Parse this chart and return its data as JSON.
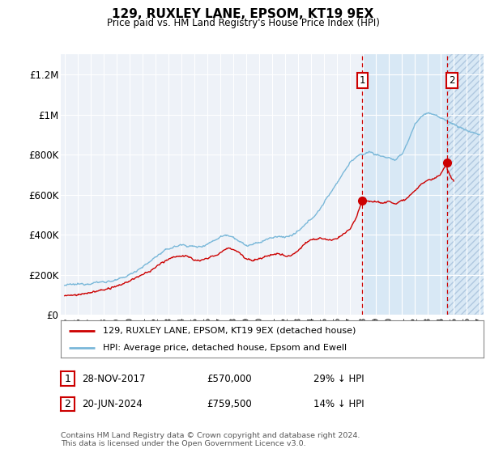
{
  "title": "129, RUXLEY LANE, EPSOM, KT19 9EX",
  "subtitle": "Price paid vs. HM Land Registry's House Price Index (HPI)",
  "xlim_start": 1994.7,
  "xlim_end": 2027.3,
  "ylim": [
    0,
    1300000
  ],
  "yticks": [
    0,
    200000,
    400000,
    600000,
    800000,
    1000000,
    1200000
  ],
  "ytick_labels": [
    "£0",
    "£200K",
    "£400K",
    "£600K",
    "£800K",
    "£1M",
    "£1.2M"
  ],
  "sale1_x": 2017.91,
  "sale1_y": 570000,
  "sale1_label": "1",
  "sale2_x": 2024.47,
  "sale2_y": 759500,
  "sale2_label": "2",
  "hpi_color": "#7ab8d9",
  "price_color": "#cc0000",
  "annotation_box_color": "#cc0000",
  "shaded_region1_start": 2017.91,
  "shaded_region2_start": 2024.47,
  "legend_line1": "129, RUXLEY LANE, EPSOM, KT19 9EX (detached house)",
  "legend_line2": "HPI: Average price, detached house, Epsom and Ewell",
  "table_row1": [
    "1",
    "28-NOV-2017",
    "£570,000",
    "29% ↓ HPI"
  ],
  "table_row2": [
    "2",
    "20-JUN-2024",
    "£759,500",
    "14% ↓ HPI"
  ],
  "footnote": "Contains HM Land Registry data © Crown copyright and database right 2024.\nThis data is licensed under the Open Government Licence v3.0.",
  "background_color": "#ffffff",
  "plot_bg_color": "#eef2f8",
  "hpi_keypoints_x": [
    1995.0,
    1995.5,
    1996.0,
    1996.5,
    1997.0,
    1997.5,
    1998.0,
    1998.5,
    1999.0,
    1999.5,
    2000.0,
    2000.5,
    2001.0,
    2001.5,
    2002.0,
    2002.5,
    2003.0,
    2003.5,
    2004.0,
    2004.5,
    2005.0,
    2005.5,
    2006.0,
    2006.5,
    2007.0,
    2007.5,
    2008.0,
    2008.5,
    2009.0,
    2009.5,
    2010.0,
    2010.5,
    2011.0,
    2011.5,
    2012.0,
    2012.5,
    2013.0,
    2013.5,
    2014.0,
    2014.5,
    2015.0,
    2015.5,
    2016.0,
    2016.5,
    2017.0,
    2017.5,
    2018.0,
    2018.5,
    2019.0,
    2019.5,
    2020.0,
    2020.5,
    2021.0,
    2021.5,
    2022.0,
    2022.5,
    2023.0,
    2023.5,
    2024.0,
    2024.5,
    2025.0,
    2025.5,
    2026.0,
    2026.5,
    2027.0
  ],
  "hpi_keypoints_y": [
    148000,
    150000,
    152000,
    155000,
    158000,
    162000,
    165000,
    168000,
    172000,
    185000,
    200000,
    220000,
    240000,
    260000,
    290000,
    310000,
    330000,
    340000,
    350000,
    345000,
    340000,
    340000,
    355000,
    370000,
    390000,
    400000,
    390000,
    365000,
    345000,
    350000,
    360000,
    375000,
    385000,
    390000,
    390000,
    395000,
    415000,
    445000,
    480000,
    510000,
    560000,
    610000,
    660000,
    710000,
    760000,
    790000,
    800000,
    815000,
    800000,
    790000,
    785000,
    770000,
    800000,
    870000,
    950000,
    990000,
    1010000,
    1000000,
    980000,
    970000,
    950000,
    935000,
    920000,
    910000,
    900000
  ],
  "price_keypoints_x": [
    1995.0,
    1995.5,
    1996.0,
    1996.5,
    1997.0,
    1997.5,
    1998.0,
    1998.5,
    1999.0,
    1999.5,
    2000.0,
    2000.5,
    2001.0,
    2001.5,
    2002.0,
    2002.5,
    2003.0,
    2003.5,
    2004.0,
    2004.5,
    2005.0,
    2005.5,
    2006.0,
    2006.5,
    2007.0,
    2007.5,
    2008.0,
    2008.5,
    2009.0,
    2009.5,
    2010.0,
    2010.5,
    2011.0,
    2011.5,
    2012.0,
    2012.5,
    2013.0,
    2013.5,
    2014.0,
    2014.5,
    2015.0,
    2015.5,
    2016.0,
    2016.5,
    2017.0,
    2017.5,
    2017.91,
    2018.0,
    2018.5,
    2019.0,
    2019.5,
    2020.0,
    2020.5,
    2021.0,
    2021.5,
    2022.0,
    2022.5,
    2023.0,
    2023.5,
    2024.0,
    2024.47,
    2024.5,
    2025.0
  ],
  "price_keypoints_y": [
    95000,
    97000,
    100000,
    105000,
    112000,
    118000,
    125000,
    132000,
    140000,
    155000,
    170000,
    185000,
    200000,
    215000,
    235000,
    260000,
    280000,
    290000,
    295000,
    290000,
    275000,
    270000,
    280000,
    295000,
    310000,
    330000,
    330000,
    310000,
    280000,
    270000,
    280000,
    290000,
    300000,
    305000,
    295000,
    300000,
    320000,
    355000,
    375000,
    380000,
    380000,
    370000,
    380000,
    400000,
    430000,
    490000,
    570000,
    570000,
    570000,
    565000,
    560000,
    565000,
    555000,
    570000,
    590000,
    620000,
    650000,
    670000,
    680000,
    700000,
    759500,
    720000,
    660000
  ]
}
